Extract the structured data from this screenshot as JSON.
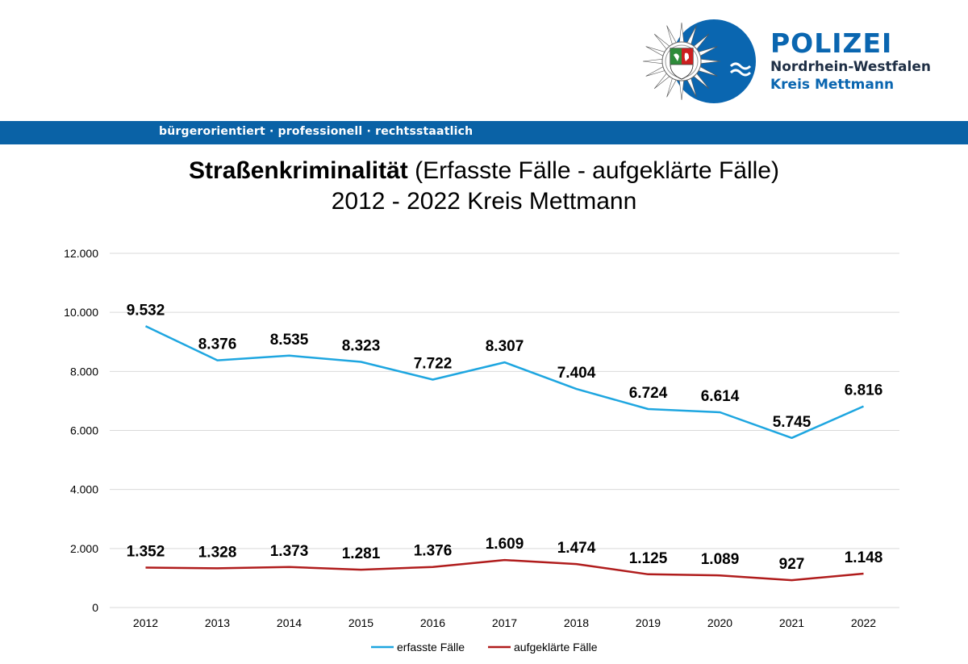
{
  "header": {
    "brand_title": "POLIZEI",
    "brand_line1": "Nordrhein-Westfalen",
    "brand_line2": "Kreis Mettmann",
    "tagline": "bürgerorientiert · professionell · rechtsstaatlich"
  },
  "colors": {
    "brand_blue": "#0a62a6",
    "series_erfasst": "#1ea6e0",
    "series_aufgeklaert": "#b01c1c",
    "grid": "#d9d9d9"
  },
  "chart_data": {
    "type": "line",
    "title": {
      "bold": "Straßenkriminalität",
      "rest": "(Erfasste Fälle - aufgeklärte Fälle)",
      "line2": "2012 - 2022 Kreis Mettmann"
    },
    "xlabel": "",
    "ylabel": "",
    "ylim": [
      0,
      12000
    ],
    "yticks": [
      "0",
      "2.000",
      "4.000",
      "6.000",
      "8.000",
      "10.000",
      "12.000"
    ],
    "grid": true,
    "legend_position": "bottom",
    "categories": [
      "2012",
      "2013",
      "2014",
      "2015",
      "2016",
      "2017",
      "2018",
      "2019",
      "2020",
      "2021",
      "2022"
    ],
    "series": [
      {
        "name": "erfasste Fälle",
        "values": [
          9532,
          8376,
          8535,
          8323,
          7722,
          8307,
          7404,
          6724,
          6614,
          5745,
          6816
        ],
        "labels": [
          "9.532",
          "8.376",
          "8.535",
          "8.323",
          "7.722",
          "8.307",
          "7.404",
          "6.724",
          "6.614",
          "5.745",
          "6.816"
        ]
      },
      {
        "name": "aufgeklärte Fälle",
        "values": [
          1352,
          1328,
          1373,
          1281,
          1376,
          1609,
          1474,
          1125,
          1089,
          927,
          1148
        ],
        "labels": [
          "1.352",
          "1.328",
          "1.373",
          "1.281",
          "1.376",
          "1.609",
          "1.474",
          "1.125",
          "1.089",
          "927",
          "1.148"
        ]
      }
    ]
  }
}
